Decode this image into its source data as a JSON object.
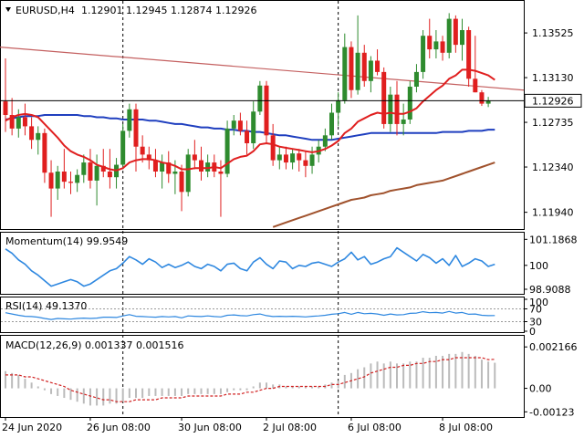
{
  "main": {
    "title": "EURUSD,H4",
    "ohlc": "1.12901 1.12945 1.12874 1.12926",
    "price_ticks": [
      "1.13525",
      "1.13130",
      "1.12735",
      "1.12340",
      "1.11940"
    ],
    "price_tick_values": [
      1.13525,
      1.1313,
      1.12735,
      1.1234,
      1.1194
    ],
    "current_price": "1.12926",
    "current_price_value": 1.12926,
    "ylim": [
      1.118,
      1.138
    ]
  },
  "momentum": {
    "title": "Momentum(14) 99.9549",
    "ticks": [
      "101.1868",
      "100",
      "98.9088"
    ],
    "tick_values": [
      101.1868,
      100,
      98.9088
    ],
    "ylim": [
      98.7,
      101.45
    ]
  },
  "rsi": {
    "title": "RSI(14) 49.1370",
    "ticks": [
      "100",
      "70",
      "30",
      "0"
    ],
    "tick_values": [
      100,
      70,
      30,
      0
    ],
    "ylim": [
      0,
      100
    ]
  },
  "macd": {
    "title": "MACD(12,26,9) 0.001337 0.001516",
    "ticks": [
      "0.002166",
      "0.00",
      "-0.00123"
    ],
    "tick_values": [
      0.002166,
      0,
      -0.00123
    ],
    "ylim": [
      -0.0015,
      0.0027
    ]
  },
  "time_axis": {
    "labels": [
      "24 Jun 2020",
      "26 Jun 08:00",
      "30 Jun 08:00",
      "2 Jul 08:00",
      "6 Jul 08:00",
      "8 Jul 08:00"
    ],
    "label_bars": [
      0,
      13,
      27,
      40,
      53,
      67
    ]
  },
  "colors": {
    "bull": "#2e8b2e",
    "bear": "#e01f1f",
    "ma_fast": "#e01f1f",
    "ma_blue": "#1f3fbf",
    "ma_brown": "#a0522d",
    "trend": "#c46060",
    "osc_line": "#2f88e0",
    "macd_signal": "#d02020",
    "macd_hist": "#bbbbbb"
  },
  "chart_data": {
    "type": "candlestick",
    "bar_count": 76,
    "candles": [
      [
        1.1292,
        1.133,
        1.1265,
        1.128
      ],
      [
        1.128,
        1.1295,
        1.1262,
        1.1268
      ],
      [
        1.1268,
        1.1285,
        1.126,
        1.1278
      ],
      [
        1.1278,
        1.129,
        1.1262,
        1.127
      ],
      [
        1.127,
        1.1278,
        1.125,
        1.1258
      ],
      [
        1.1258,
        1.127,
        1.1245,
        1.1264
      ],
      [
        1.1264,
        1.1268,
        1.122,
        1.1229
      ],
      [
        1.1229,
        1.124,
        1.119,
        1.1215
      ],
      [
        1.1215,
        1.1235,
        1.1205,
        1.123
      ],
      [
        1.123,
        1.125,
        1.1215,
        1.1221
      ],
      [
        1.1221,
        1.123,
        1.121,
        1.122
      ],
      [
        1.122,
        1.1232,
        1.1212,
        1.1227
      ],
      [
        1.1227,
        1.1245,
        1.122,
        1.1238
      ],
      [
        1.1238,
        1.125,
        1.1215,
        1.1222
      ],
      [
        1.1222,
        1.1245,
        1.12,
        1.1235
      ],
      [
        1.1235,
        1.125,
        1.1225,
        1.123
      ],
      [
        1.123,
        1.125,
        1.1215,
        1.1225
      ],
      [
        1.1225,
        1.1242,
        1.1215,
        1.1236
      ],
      [
        1.1236,
        1.1272,
        1.1232,
        1.1266
      ],
      [
        1.1266,
        1.129,
        1.126,
        1.1285
      ],
      [
        1.1285,
        1.129,
        1.123,
        1.1252
      ],
      [
        1.1252,
        1.1262,
        1.1238,
        1.1245
      ],
      [
        1.1245,
        1.1252,
        1.1232,
        1.124
      ],
      [
        1.124,
        1.125,
        1.1225,
        1.123
      ],
      [
        1.123,
        1.1245,
        1.1215,
        1.1238
      ],
      [
        1.1238,
        1.1248,
        1.122,
        1.1228
      ],
      [
        1.1228,
        1.124,
        1.121,
        1.123
      ],
      [
        1.123,
        1.1236,
        1.1195,
        1.1212
      ],
      [
        1.1212,
        1.125,
        1.1208,
        1.1245
      ],
      [
        1.1245,
        1.1258,
        1.1232,
        1.124
      ],
      [
        1.124,
        1.1252,
        1.1222,
        1.123
      ],
      [
        1.123,
        1.1245,
        1.1225,
        1.1238
      ],
      [
        1.1238,
        1.1245,
        1.1225,
        1.123
      ],
      [
        1.123,
        1.124,
        1.119,
        1.1228
      ],
      [
        1.1228,
        1.1275,
        1.1225,
        1.1268
      ],
      [
        1.1268,
        1.128,
        1.1262,
        1.1275
      ],
      [
        1.1275,
        1.1282,
        1.1262,
        1.1266
      ],
      [
        1.1266,
        1.1275,
        1.1245,
        1.1255
      ],
      [
        1.1255,
        1.1292,
        1.125,
        1.1283
      ],
      [
        1.1283,
        1.131,
        1.128,
        1.1306
      ],
      [
        1.1306,
        1.131,
        1.1255,
        1.1262
      ],
      [
        1.1262,
        1.1272,
        1.1235,
        1.124
      ],
      [
        1.124,
        1.1252,
        1.1232,
        1.1245
      ],
      [
        1.1245,
        1.1252,
        1.1232,
        1.1238
      ],
      [
        1.1238,
        1.125,
        1.1232,
        1.1246
      ],
      [
        1.1246,
        1.125,
        1.123,
        1.124
      ],
      [
        1.124,
        1.1248,
        1.1225,
        1.1235
      ],
      [
        1.1235,
        1.1252,
        1.1228,
        1.1245
      ],
      [
        1.1245,
        1.1258,
        1.1238,
        1.1252
      ],
      [
        1.1252,
        1.1268,
        1.1248,
        1.1262
      ],
      [
        1.1262,
        1.129,
        1.1258,
        1.1282
      ],
      [
        1.1282,
        1.13,
        1.127,
        1.1293
      ],
      [
        1.1293,
        1.1352,
        1.129,
        1.134
      ],
      [
        1.134,
        1.1345,
        1.1295,
        1.1302
      ],
      [
        1.1302,
        1.1368,
        1.1298,
        1.1335
      ],
      [
        1.1335,
        1.1342,
        1.1305,
        1.131
      ],
      [
        1.131,
        1.1332,
        1.13,
        1.1328
      ],
      [
        1.1328,
        1.1338,
        1.1315,
        1.1318
      ],
      [
        1.1318,
        1.1322,
        1.1268,
        1.1272
      ],
      [
        1.1272,
        1.1305,
        1.1265,
        1.1298
      ],
      [
        1.1298,
        1.131,
        1.1262,
        1.1272
      ],
      [
        1.1272,
        1.129,
        1.1262,
        1.1276
      ],
      [
        1.1276,
        1.131,
        1.1272,
        1.1305
      ],
      [
        1.1305,
        1.1325,
        1.13,
        1.1318
      ],
      [
        1.1318,
        1.1355,
        1.1312,
        1.135
      ],
      [
        1.135,
        1.1365,
        1.133,
        1.1338
      ],
      [
        1.1338,
        1.1355,
        1.133,
        1.1345
      ],
      [
        1.1345,
        1.135,
        1.1328,
        1.1335
      ],
      [
        1.1335,
        1.137,
        1.133,
        1.1365
      ],
      [
        1.1365,
        1.1368,
        1.1335,
        1.1342
      ],
      [
        1.1342,
        1.1365,
        1.1328,
        1.1355
      ],
      [
        1.1355,
        1.1358,
        1.1305,
        1.1312
      ],
      [
        1.1312,
        1.135,
        1.13,
        1.13
      ],
      [
        1.13,
        1.1302,
        1.1288,
        1.129
      ],
      [
        1.129,
        1.1296,
        1.1287,
        1.12926
      ]
    ],
    "ma_fast": [
      1.1275,
      1.1278,
      1.128,
      1.1281,
      1.128,
      1.1278,
      1.1272,
      1.1266,
      1.126,
      1.1253,
      1.1248,
      1.1245,
      1.1243,
      1.124,
      1.1236,
      1.1234,
      1.1232,
      1.1231,
      1.1233,
      1.1238,
      1.124,
      1.1241,
      1.1241,
      1.124,
      1.1238,
      1.1237,
      1.1235,
      1.1232,
      1.1232,
      1.1233,
      1.1233,
      1.1233,
      1.1234,
      1.1233,
      1.1237,
      1.1241,
      1.1243,
      1.1244,
      1.1248,
      1.1254,
      1.1255,
      1.1254,
      1.1252,
      1.1251,
      1.125,
      1.1249,
      1.1248,
      1.1247,
      1.1248,
      1.125,
      1.1253,
      1.1257,
      1.1264,
      1.1268,
      1.1274,
      1.1277,
      1.128,
      1.1282,
      1.1281,
      1.1282,
      1.1281,
      1.1281,
      1.1283,
      1.1286,
      1.1292,
      1.1297,
      1.1302,
      1.1306,
      1.1312,
      1.1315,
      1.132,
      1.132,
      1.1319,
      1.1317,
      1.1315,
      1.1311
    ],
    "ma_blue": [
      1.1276,
      1.1277,
      1.1278,
      1.1279,
      1.1279,
      1.1279,
      1.128,
      1.128,
      1.128,
      1.128,
      1.128,
      1.128,
      1.1279,
      1.1279,
      1.1278,
      1.1278,
      1.1277,
      1.1277,
      1.1276,
      1.1276,
      1.1276,
      1.1276,
      1.1275,
      1.1275,
      1.1274,
      1.1273,
      1.1272,
      1.1272,
      1.1271,
      1.127,
      1.1269,
      1.1269,
      1.1268,
      1.1268,
      1.1267,
      1.1267,
      1.1266,
      1.1266,
      1.1265,
      1.1265,
      1.1264,
      1.1263,
      1.1262,
      1.1262,
      1.1261,
      1.126,
      1.1259,
      1.1258,
      1.1258,
      1.1258,
      1.1258,
      1.1259,
      1.126,
      1.1261,
      1.1262,
      1.1263,
      1.1264,
      1.1264,
      1.1264,
      1.1264,
      1.1264,
      1.1264,
      1.1264,
      1.1264,
      1.1264,
      1.1264,
      1.1264,
      1.1265,
      1.1265,
      1.1265,
      1.1265,
      1.1266,
      1.1266,
      1.1266,
      1.1267,
      1.1267
    ],
    "ma_brown": [
      null,
      null,
      null,
      null,
      null,
      null,
      null,
      null,
      null,
      null,
      null,
      null,
      null,
      null,
      null,
      null,
      null,
      null,
      null,
      null,
      null,
      null,
      null,
      null,
      null,
      null,
      null,
      null,
      null,
      null,
      null,
      null,
      null,
      null,
      null,
      null,
      null,
      null,
      null,
      null,
      null,
      1.1181,
      1.1183,
      1.1185,
      1.1187,
      1.1189,
      1.1191,
      1.1193,
      1.1195,
      1.1197,
      1.1199,
      1.1201,
      1.1203,
      1.1205,
      1.1206,
      1.1207,
      1.1209,
      1.121,
      1.1211,
      1.1213,
      1.1214,
      1.1215,
      1.1216,
      1.1218,
      1.1219,
      1.122,
      1.1221,
      1.1222,
      1.1224,
      1.1226,
      1.1228,
      1.123,
      1.1232,
      1.1234,
      1.1236,
      1.1238
    ],
    "trend_line": [
      [
        0,
        1.134
      ],
      [
        75,
        1.1302
      ]
    ],
    "momentum_values": [
      100.75,
      100.55,
      100.25,
      100.05,
      99.75,
      99.55,
      99.3,
      99.05,
      99.15,
      99.25,
      99.35,
      99.25,
      99.05,
      99.15,
      99.35,
      99.55,
      99.75,
      99.85,
      100.1,
      100.4,
      100.25,
      100.05,
      100.3,
      100.15,
      99.9,
      100.05,
      99.9,
      100.0,
      100.15,
      99.95,
      99.85,
      100.05,
      99.95,
      99.75,
      100.05,
      100.1,
      99.85,
      99.75,
      100.15,
      100.35,
      100.05,
      99.85,
      100.2,
      100.15,
      99.85,
      100.0,
      99.95,
      100.1,
      100.15,
      100.05,
      99.95,
      100.15,
      100.3,
      100.6,
      100.25,
      100.4,
      100.05,
      100.15,
      100.3,
      100.4,
      100.8,
      100.6,
      100.4,
      100.2,
      100.5,
      100.35,
      100.1,
      100.3,
      100.0,
      100.45,
      99.95,
      100.1,
      100.3,
      100.2,
      99.95,
      100.05
    ],
    "rsi_values": [
      58,
      54,
      50,
      47,
      46,
      44,
      40,
      37,
      40,
      39,
      38,
      40,
      41,
      40,
      41,
      44,
      44,
      43,
      48,
      52,
      47,
      46,
      45,
      44,
      46,
      45,
      46,
      42,
      48,
      47,
      46,
      48,
      46,
      45,
      50,
      51,
      49,
      48,
      52,
      54,
      49,
      46,
      47,
      46,
      47,
      46,
      45,
      47,
      48,
      50,
      53,
      55,
      59,
      53,
      59,
      55,
      56,
      54,
      50,
      54,
      51,
      52,
      56,
      57,
      61,
      58,
      59,
      57,
      62,
      57,
      59,
      53,
      54,
      50,
      49,
      49.137
    ],
    "macd_hist": [
      0.0009,
      0.0008,
      0.0007,
      0.0005,
      0.0003,
      0.0001,
      -0.0001,
      -0.0003,
      -0.0004,
      -0.0005,
      -0.0006,
      -0.0007,
      -0.0008,
      -0.0009,
      -0.0009,
      -0.0009,
      -0.0008,
      -0.0008,
      -0.0007,
      -0.0005,
      -0.0005,
      -0.0005,
      -0.0004,
      -0.0004,
      -0.0004,
      -0.0004,
      -0.0004,
      -0.0004,
      -0.0003,
      -0.0003,
      -0.0003,
      -0.0003,
      -0.0003,
      -0.0003,
      -0.0002,
      -0.0001,
      -0.0001,
      -0.0001,
      0.0001,
      0.0003,
      0.0003,
      0.0002,
      0.0002,
      0.0001,
      0.0001,
      0.0001,
      0.0001,
      0.0001,
      0.0001,
      0.0002,
      0.0003,
      0.0004,
      0.0007,
      0.0008,
      0.001,
      0.0011,
      0.0013,
      0.0014,
      0.0013,
      0.0014,
      0.0013,
      0.0013,
      0.0014,
      0.0014,
      0.0016,
      0.0016,
      0.0017,
      0.0017,
      0.0018,
      0.0018,
      0.0019,
      0.0018,
      0.0017,
      0.0015,
      0.0014,
      0.001337
    ],
    "macd_signal": [
      0.0007,
      0.0007,
      0.0007,
      0.0006,
      0.0006,
      0.0005,
      0.0004,
      0.0003,
      0.0002,
      0.0001,
      -0.0001,
      -0.0002,
      -0.0003,
      -0.0004,
      -0.0005,
      -0.0006,
      -0.0006,
      -0.0007,
      -0.0007,
      -0.0007,
      -0.0006,
      -0.0006,
      -0.0006,
      -0.0006,
      -0.0005,
      -0.0005,
      -0.0005,
      -0.0005,
      -0.0004,
      -0.0004,
      -0.0004,
      -0.0004,
      -0.0004,
      -0.0004,
      -0.0003,
      -0.0003,
      -0.0003,
      -0.0002,
      -0.0002,
      -0.0001,
      0.0,
      0.0,
      0.0001,
      0.0001,
      0.0001,
      0.0001,
      0.0001,
      0.0001,
      0.0001,
      0.0001,
      0.0002,
      0.0002,
      0.0003,
      0.0004,
      0.0005,
      0.0006,
      0.0008,
      0.0009,
      0.001,
      0.0011,
      0.0011,
      0.0012,
      0.0012,
      0.0013,
      0.0013,
      0.0014,
      0.0014,
      0.0015,
      0.0015,
      0.0016,
      0.0016,
      0.0016,
      0.0016,
      0.0016,
      0.0015,
      0.001516
    ]
  }
}
